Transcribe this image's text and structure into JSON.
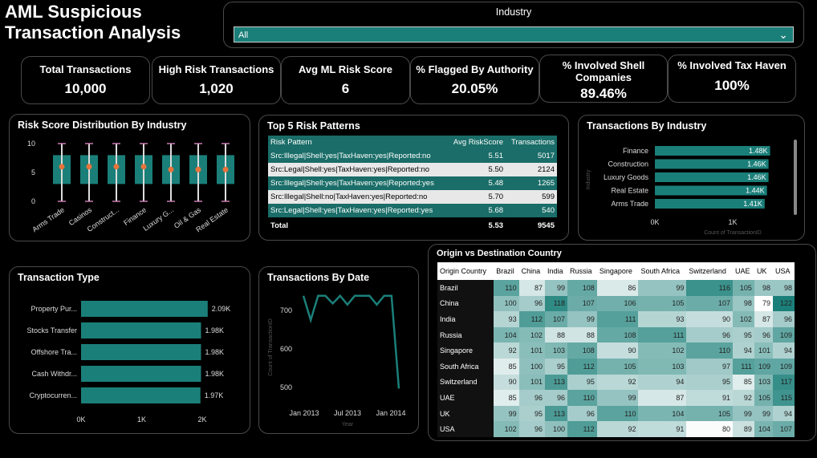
{
  "app_title": "AML Suspicious Transaction Analysis",
  "filter": {
    "label": "Industry",
    "value": "All"
  },
  "kpis": [
    {
      "label": "Total Transactions",
      "value": "10,000"
    },
    {
      "label": "High Risk Transactions",
      "value": "1,020"
    },
    {
      "label": "Avg ML Risk Score",
      "value": "6"
    },
    {
      "label": "% Flagged By Authority",
      "value": "20.05%"
    },
    {
      "label": "% Involved Shell Companies",
      "value": "89.46%"
    },
    {
      "label": "% Involved Tax Haven",
      "value": "100%"
    }
  ],
  "risk_dist": {
    "title": "Risk Score Distribution By Industry",
    "y_ticks": [
      "10",
      "5",
      "0"
    ],
    "industries": [
      "Arms Trade",
      "Casinos",
      "Construct...",
      "Finance",
      "Luxury G...",
      "Oil & Gas",
      "Real Estate"
    ],
    "medians": [
      6,
      6,
      6,
      6,
      5.5,
      5.5,
      5.5
    ]
  },
  "patterns": {
    "title": "Top 5 Risk Patterns",
    "headers": [
      "Risk Pattern",
      "Avg RiskScore",
      "Transactions"
    ],
    "rows": [
      [
        "Src:Illegal|Shell:yes|TaxHaven:yes|Reported:no",
        "5.51",
        "5017"
      ],
      [
        "Src:Legal|Shell:yes|TaxHaven:yes|Reported:no",
        "5.50",
        "2124"
      ],
      [
        "Src:Illegal|Shell:yes|TaxHaven:yes|Reported:yes",
        "5.48",
        "1265"
      ],
      [
        "Src:Illegal|Shell:no|TaxHaven:yes|Reported:no",
        "5.70",
        "599"
      ],
      [
        "Src:Legal|Shell:yes|TaxHaven:yes|Reported:yes",
        "5.68",
        "540"
      ]
    ],
    "total": [
      "Total",
      "5.53",
      "9545"
    ]
  },
  "by_industry": {
    "title": "Transactions By Industry",
    "axis_title": "Industry",
    "x_title": "Count of TransactionID",
    "x_ticks": [
      "0K",
      "1K"
    ],
    "categories": [
      "Finance",
      "Construction",
      "Luxury Goods",
      "Real Estate",
      "Arms Trade"
    ],
    "values": [
      1480,
      1460,
      1460,
      1440,
      1410
    ],
    "labels": [
      "1.48K",
      "1.46K",
      "1.46K",
      "1.44K",
      "1.41K"
    ]
  },
  "tx_type": {
    "title": "Transaction Type",
    "categories": [
      "Property Pur...",
      "Stocks Transfer",
      "Offshore Tra...",
      "Cash Withdr...",
      "Cryptocurren..."
    ],
    "values": [
      2090,
      1980,
      1980,
      1980,
      1970
    ],
    "labels": [
      "2.09K",
      "1.98K",
      "1.98K",
      "1.98K",
      "1.97K"
    ],
    "x_ticks": [
      "0K",
      "1K",
      "2K"
    ]
  },
  "by_date": {
    "title": "Transactions By Date",
    "x_title": "Year",
    "y_title": "Count of TransactionID",
    "y_ticks": [
      "700",
      "600",
      "500"
    ],
    "x_ticks": [
      "Jan 2013",
      "Jul 2013",
      "Jan 2014"
    ]
  },
  "matrix": {
    "title": "Origin vs Destination Country",
    "corner": "Origin Country",
    "columns": [
      "Brazil",
      "China",
      "India",
      "Russia",
      "Singapore",
      "South Africa",
      "Switzerland",
      "UAE",
      "UK",
      "USA"
    ],
    "rows": [
      {
        "name": "Brazil",
        "values": [
          110,
          87,
          99,
          108,
          86,
          99,
          116,
          105,
          98,
          98
        ]
      },
      {
        "name": "China",
        "values": [
          100,
          96,
          118,
          107,
          106,
          105,
          107,
          98,
          79,
          122
        ]
      },
      {
        "name": "India",
        "values": [
          93,
          112,
          107,
          99,
          111,
          93,
          90,
          102,
          87,
          96
        ]
      },
      {
        "name": "Russia",
        "values": [
          104,
          102,
          88,
          88,
          108,
          111,
          96,
          95,
          96,
          109
        ]
      },
      {
        "name": "Singapore",
        "values": [
          92,
          101,
          103,
          108,
          90,
          102,
          110,
          94,
          101,
          94
        ]
      },
      {
        "name": "South Africa",
        "values": [
          85,
          100,
          95,
          112,
          105,
          103,
          97,
          111,
          109,
          109
        ]
      },
      {
        "name": "Switzerland",
        "values": [
          90,
          101,
          113,
          95,
          92,
          94,
          95,
          85,
          103,
          117
        ]
      },
      {
        "name": "UAE",
        "values": [
          85,
          96,
          96,
          110,
          99,
          87,
          91,
          92,
          105,
          115
        ]
      },
      {
        "name": "UK",
        "values": [
          99,
          95,
          113,
          96,
          110,
          104,
          105,
          99,
          99,
          94
        ]
      },
      {
        "name": "USA",
        "values": [
          102,
          96,
          100,
          112,
          92,
          91,
          80,
          89,
          104,
          107
        ]
      }
    ]
  },
  "colors": {
    "teal": "#1b7f79",
    "dot": "#e8743b",
    "whisker": "#c77bb0"
  },
  "chart_data": [
    {
      "type": "bar",
      "title": "Transactions By Industry",
      "categories": [
        "Finance",
        "Construction",
        "Luxury Goods",
        "Real Estate",
        "Arms Trade"
      ],
      "values": [
        1480,
        1460,
        1460,
        1440,
        1410
      ],
      "xlabel": "Count of TransactionID",
      "ylabel": "Industry"
    },
    {
      "type": "bar",
      "title": "Transaction Type",
      "categories": [
        "Property Pur...",
        "Stocks Transfer",
        "Offshore Tra...",
        "Cash Withdr...",
        "Cryptocurren..."
      ],
      "values": [
        2090,
        1980,
        1980,
        1980,
        1970
      ],
      "xlim": [
        0,
        2000
      ]
    },
    {
      "type": "line",
      "title": "Transactions By Date",
      "x": [
        "2013-01",
        "2013-02",
        "2013-03",
        "2013-04",
        "2013-05",
        "2013-06",
        "2013-07",
        "2013-08",
        "2013-09",
        "2013-10",
        "2013-11",
        "2013-12",
        "2014-01",
        "2014-02"
      ],
      "values": [
        738,
        675,
        738,
        738,
        718,
        738,
        715,
        738,
        738,
        738,
        715,
        738,
        738,
        497
      ],
      "xlabel": "Year",
      "ylabel": "Count of TransactionID",
      "ylim": [
        470,
        760
      ]
    },
    {
      "type": "scatter",
      "title": "Risk Score Distribution By Industry",
      "categories": [
        "Arms Trade",
        "Casinos",
        "Construct...",
        "Finance",
        "Luxury G...",
        "Oil & Gas",
        "Real Estate"
      ],
      "values": [
        6,
        6,
        6,
        6,
        5.5,
        5.5,
        5.5
      ],
      "ylim": [
        0,
        10
      ]
    }
  ]
}
